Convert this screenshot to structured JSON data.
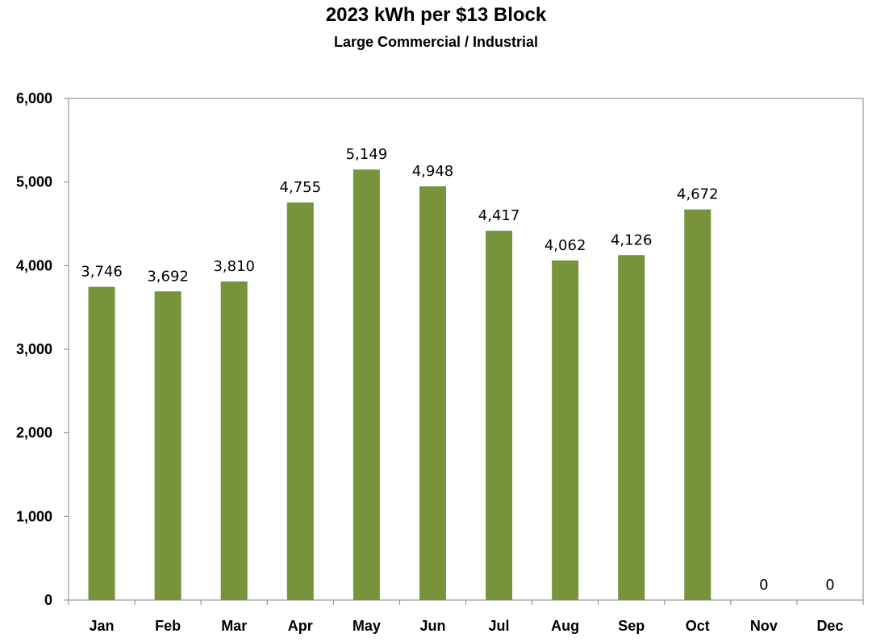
{
  "chart_data": {
    "type": "bar",
    "title": "2023 kWh per $13 Block",
    "subtitle": "Large Commercial / Industrial",
    "categories": [
      "Jan",
      "Feb",
      "Mar",
      "Apr",
      "May",
      "Jun",
      "Jul",
      "Aug",
      "Sep",
      "Oct",
      "Nov",
      "Dec"
    ],
    "values": [
      3746,
      3692,
      3810,
      4755,
      5149,
      4948,
      4417,
      4062,
      4126,
      4672,
      0,
      0
    ],
    "data_labels": [
      "3,746",
      "3,692",
      "3,810",
      "4,755",
      "5,149",
      "4,948",
      "4,417",
      "4,062",
      "4,126",
      "4,672",
      "0",
      "0"
    ],
    "ylim": [
      0,
      6000
    ],
    "yticks": [
      0,
      1000,
      2000,
      3000,
      4000,
      5000,
      6000
    ],
    "ytick_labels": [
      "0",
      "1,000",
      "2,000",
      "3,000",
      "4,000",
      "5,000",
      "6,000"
    ],
    "xlabel": "",
    "ylabel": "",
    "grid": false,
    "legend": false,
    "bar_color": "#77933c",
    "frame_color": "#868686"
  }
}
